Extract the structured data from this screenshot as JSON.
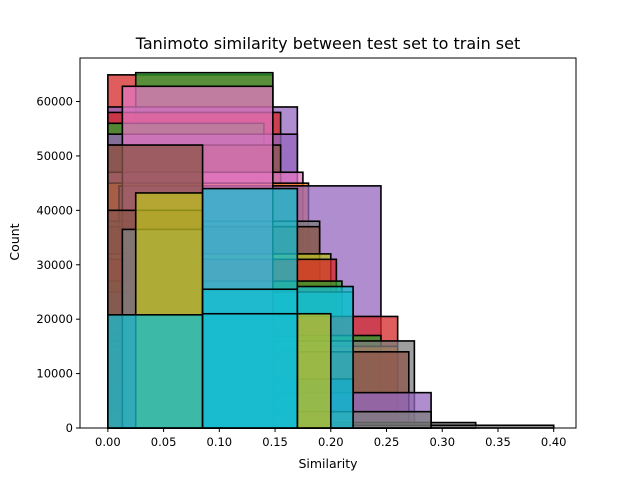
{
  "chart_data": {
    "type": "bar",
    "title": "Tanimoto similarity between test set to train set",
    "xlabel": "Similarity",
    "ylabel": "Count",
    "xlim": [
      -0.025,
      0.42
    ],
    "ylim": [
      0,
      68000
    ],
    "x_ticks": [
      0.0,
      0.05,
      0.1,
      0.15,
      0.2,
      0.25,
      0.3,
      0.35,
      0.4
    ],
    "x_tick_labels": [
      "0.00",
      "0.05",
      "0.10",
      "0.15",
      "0.20",
      "0.25",
      "0.30",
      "0.35",
      "0.40"
    ],
    "y_ticks": [
      0,
      10000,
      20000,
      30000,
      40000,
      50000,
      60000
    ],
    "y_tick_labels": [
      "0",
      "10000",
      "20000",
      "30000",
      "40000",
      "50000",
      "60000"
    ],
    "grid": false,
    "legend": "none",
    "overlapping_histograms": true,
    "bars": [
      {
        "x0": 0.0,
        "x1": 0.148,
        "value": 64900,
        "color": "#d62728"
      },
      {
        "x0": 0.025,
        "x1": 0.148,
        "value": 65300,
        "color": "#2ca02c"
      },
      {
        "x0": 0.0,
        "x1": 0.17,
        "value": 59000,
        "color": "#9467bd"
      },
      {
        "x0": 0.0,
        "x1": 0.155,
        "value": 58000,
        "color": "#d62728"
      },
      {
        "x0": 0.0,
        "x1": 0.14,
        "value": 56000,
        "color": "#2ca02c"
      },
      {
        "x0": 0.0,
        "x1": 0.17,
        "value": 54000,
        "color": "#9467bd"
      },
      {
        "x0": 0.0,
        "x1": 0.155,
        "value": 52000,
        "color": "#8c564b"
      },
      {
        "x0": 0.0,
        "x1": 0.175,
        "value": 47000,
        "color": "#e377c2"
      },
      {
        "x0": 0.0,
        "x1": 0.18,
        "value": 45000,
        "color": "#ff7f0e"
      },
      {
        "x0": 0.01,
        "x1": 0.245,
        "value": 44500,
        "color": "#9467bd"
      },
      {
        "x0": 0.0,
        "x1": 0.19,
        "value": 38000,
        "color": "#7f7f7f"
      },
      {
        "x0": 0.0,
        "x1": 0.19,
        "value": 37000,
        "color": "#8c564b"
      },
      {
        "x0": 0.0,
        "x1": 0.2,
        "value": 32000,
        "color": "#bcbd22"
      },
      {
        "x0": 0.0,
        "x1": 0.205,
        "value": 31000,
        "color": "#d62728"
      },
      {
        "x0": 0.0,
        "x1": 0.21,
        "value": 27000,
        "color": "#2ca02c"
      },
      {
        "x0": 0.0,
        "x1": 0.22,
        "value": 25000,
        "color": "#17becf"
      },
      {
        "x0": 0.0,
        "x1": 0.26,
        "value": 20500,
        "color": "#d62728"
      },
      {
        "x0": 0.0,
        "x1": 0.245,
        "value": 17000,
        "color": "#2ca02c"
      },
      {
        "x0": 0.0,
        "x1": 0.26,
        "value": 15000,
        "color": "#ff7f0e"
      },
      {
        "x0": 0.0,
        "x1": 0.275,
        "value": 16000,
        "color": "#7f7f7f"
      },
      {
        "x0": 0.0,
        "x1": 0.27,
        "value": 14000,
        "color": "#8c564b"
      },
      {
        "x0": 0.0,
        "x1": 0.29,
        "value": 6500,
        "color": "#9467bd"
      },
      {
        "x0": 0.0,
        "x1": 0.22,
        "value": 9000,
        "color": "#1f77b4"
      },
      {
        "x0": 0.0,
        "x1": 0.33,
        "value": 1000,
        "color": "#7f7f7f"
      },
      {
        "x0": 0.0,
        "x1": 0.4,
        "value": 500,
        "color": "#7f7f7f"
      },
      {
        "x0": 0.0,
        "x1": 0.29,
        "value": 3000,
        "color": "#7f7f7f"
      },
      {
        "x0": 0.013,
        "x1": 0.148,
        "value": 62800,
        "color": "#e377c2"
      },
      {
        "x0": 0.0,
        "x1": 0.085,
        "value": 52000,
        "color": "#8c564b"
      },
      {
        "x0": 0.0,
        "x1": 0.085,
        "value": 40000,
        "color": "#8c564b"
      },
      {
        "x0": 0.013,
        "x1": 0.085,
        "value": 36500,
        "color": "#7f7f7f"
      },
      {
        "x0": 0.025,
        "x1": 0.085,
        "value": 43200,
        "color": "#bcbd22"
      },
      {
        "x0": 0.085,
        "x1": 0.17,
        "value": 44000,
        "color": "#17becf"
      },
      {
        "x0": 0.085,
        "x1": 0.17,
        "value": 25500,
        "color": "#17becf"
      },
      {
        "x0": 0.17,
        "x1": 0.22,
        "value": 26000,
        "color": "#17becf"
      },
      {
        "x0": 0.17,
        "x1": 0.2,
        "value": 21000,
        "color": "#bcbd22"
      },
      {
        "x0": 0.0,
        "x1": 0.085,
        "value": 20800,
        "color": "#17becf"
      },
      {
        "x0": 0.085,
        "x1": 0.17,
        "value": 21000,
        "color": "#17becf"
      }
    ]
  }
}
